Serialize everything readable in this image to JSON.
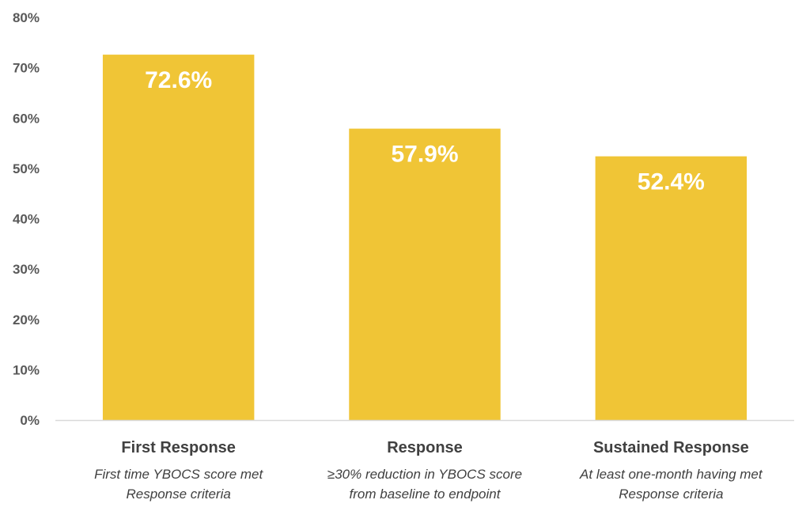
{
  "chart_data": {
    "type": "bar",
    "categories": [
      "First Response",
      "Response",
      "Sustained Response"
    ],
    "category_descriptions": [
      [
        "First time YBOCS score met",
        "Response criteria"
      ],
      [
        "≥30% reduction in YBOCS score",
        "from baseline to endpoint"
      ],
      [
        "At least one-month having met",
        "Response criteria"
      ]
    ],
    "values": [
      72.6,
      57.9,
      52.4
    ],
    "data_labels": [
      "72.6%",
      "57.9%",
      "52.4%"
    ],
    "ylim": [
      0,
      80
    ],
    "yticks": [
      0,
      10,
      20,
      30,
      40,
      50,
      60,
      70,
      80
    ],
    "ytick_labels": [
      "0%",
      "10%",
      "20%",
      "30%",
      "40%",
      "50%",
      "60%",
      "70%",
      "80%"
    ],
    "title": "",
    "xlabel": "",
    "ylabel": "",
    "grid": false,
    "legend": "none",
    "colors": {
      "bar": "#F0C536",
      "axis": "#D9D9D9",
      "tick_text": "#595959",
      "category_text": "#404040",
      "data_label_text": "#FFFFFF"
    }
  }
}
